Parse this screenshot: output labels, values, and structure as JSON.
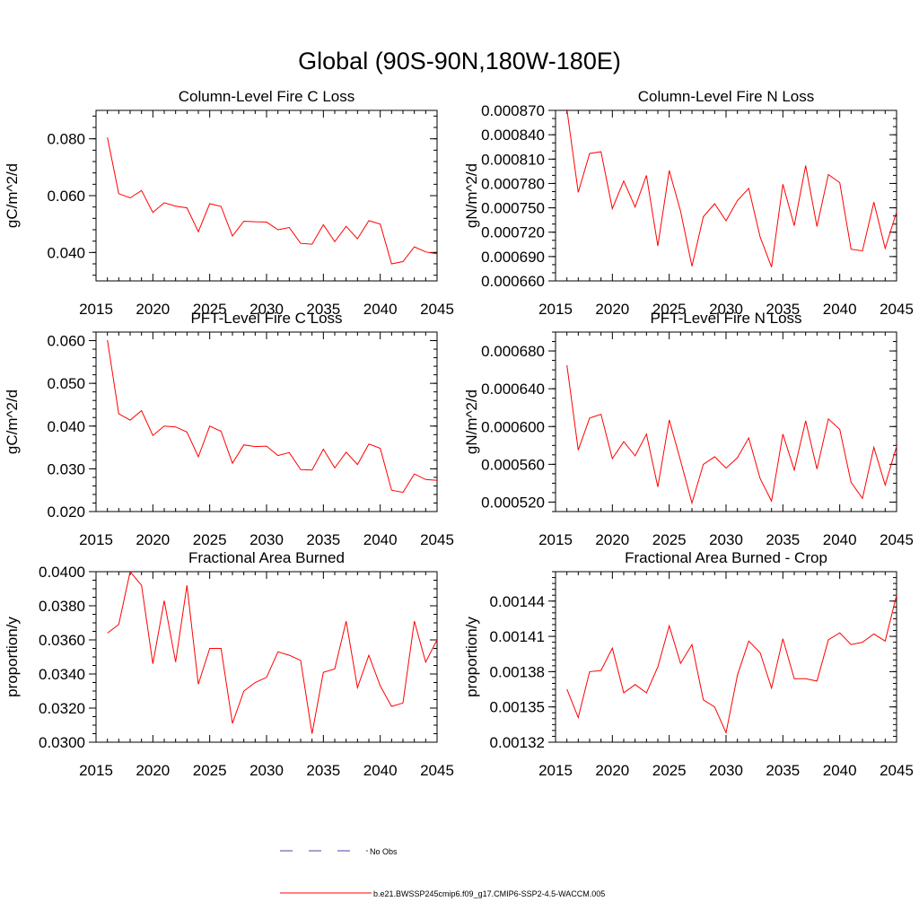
{
  "figure": {
    "title": "Global (90S-90N,180W-180E)",
    "legend": [
      {
        "label": "No Obs",
        "color": "#4444aa",
        "style": "dashed"
      },
      {
        "label": "b.e21.BWSSP245cmip6.f09_g17.CMIP6-SSP2-4.5-WACCM.005",
        "color": "#ff0000",
        "style": "solid"
      }
    ]
  },
  "chart_data": [
    {
      "type": "line",
      "title": "Column-Level Fire C Loss",
      "ylabel": "gC/m^2/d",
      "xlim": [
        2015,
        2045
      ],
      "ylim": [
        0.03,
        0.09
      ],
      "xticks": [
        "2015",
        "2020",
        "2025",
        "2030",
        "2035",
        "2040",
        "2045"
      ],
      "yticks": [
        {
          "v": 0.04,
          "label": "0.040"
        },
        {
          "v": 0.06,
          "label": "0.060"
        },
        {
          "v": 0.08,
          "label": "0.080"
        }
      ],
      "yminor_step": 0.004,
      "x": [
        2016,
        2017,
        2018,
        2019,
        2020,
        2021,
        2022,
        2023,
        2024,
        2025,
        2026,
        2027,
        2028,
        2029,
        2030,
        2031,
        2032,
        2033,
        2034,
        2035,
        2036,
        2037,
        2038,
        2039,
        2040,
        2041,
        2042,
        2043,
        2044,
        2045
      ],
      "series": [
        {
          "color": "#ff0000",
          "values": [
            0.0805,
            0.0607,
            0.0592,
            0.0618,
            0.0541,
            0.0575,
            0.0563,
            0.0557,
            0.0473,
            0.0572,
            0.0562,
            0.0458,
            0.051,
            0.0508,
            0.0507,
            0.048,
            0.0488,
            0.0432,
            0.0429,
            0.0498,
            0.0438,
            0.0492,
            0.0448,
            0.0512,
            0.05,
            0.036,
            0.0368,
            0.042,
            0.0402,
            0.0395
          ]
        }
      ]
    },
    {
      "type": "line",
      "title": "Column-Level Fire N Loss",
      "ylabel": "gN/m^2/d",
      "xlim": [
        2015,
        2045
      ],
      "ylim": [
        0.00066,
        0.00087
      ],
      "xticks": [
        "2015",
        "2020",
        "2025",
        "2030",
        "2035",
        "2040",
        "2045"
      ],
      "yticks": [
        {
          "v": 0.00066,
          "label": "0.000660"
        },
        {
          "v": 0.00069,
          "label": "0.000690"
        },
        {
          "v": 0.00072,
          "label": "0.000720"
        },
        {
          "v": 0.00075,
          "label": "0.000750"
        },
        {
          "v": 0.00078,
          "label": "0.000780"
        },
        {
          "v": 0.00081,
          "label": "0.000810"
        },
        {
          "v": 0.00084,
          "label": "0.000840"
        },
        {
          "v": 0.00087,
          "label": "0.000870"
        }
      ],
      "yminor_step": 1e-05,
      "x": [
        2016,
        2017,
        2018,
        2019,
        2020,
        2021,
        2022,
        2023,
        2024,
        2025,
        2026,
        2027,
        2028,
        2029,
        2030,
        2031,
        2032,
        2033,
        2034,
        2035,
        2036,
        2037,
        2038,
        2039,
        2040,
        2041,
        2042,
        2043,
        2044,
        2045
      ],
      "series": [
        {
          "color": "#ff0000",
          "values": [
            0.000871,
            0.000769,
            0.000817,
            0.000819,
            0.000749,
            0.000783,
            0.000751,
            0.00079,
            0.000703,
            0.000796,
            0.000746,
            0.000678,
            0.000739,
            0.000755,
            0.000734,
            0.000759,
            0.000774,
            0.000714,
            0.000677,
            0.000779,
            0.000728,
            0.000802,
            0.000727,
            0.000791,
            0.000781,
            0.000699,
            0.000697,
            0.000757,
            0.0007,
            0.000745
          ]
        }
      ]
    },
    {
      "type": "line",
      "title": "PFT-Level Fire C Loss",
      "ylabel": "gC/m^2/d",
      "xlim": [
        2015,
        2045
      ],
      "ylim": [
        0.02,
        0.062
      ],
      "xticks": [
        "2015",
        "2020",
        "2025",
        "2030",
        "2035",
        "2040",
        "2045"
      ],
      "yticks": [
        {
          "v": 0.02,
          "label": "0.020"
        },
        {
          "v": 0.03,
          "label": "0.030"
        },
        {
          "v": 0.04,
          "label": "0.040"
        },
        {
          "v": 0.05,
          "label": "0.050"
        },
        {
          "v": 0.06,
          "label": "0.060"
        }
      ],
      "yminor_step": 0.002,
      "x": [
        2016,
        2017,
        2018,
        2019,
        2020,
        2021,
        2022,
        2023,
        2024,
        2025,
        2026,
        2027,
        2028,
        2029,
        2030,
        2031,
        2032,
        2033,
        2034,
        2035,
        2036,
        2037,
        2038,
        2039,
        2040,
        2041,
        2042,
        2043,
        2044,
        2045
      ],
      "series": [
        {
          "color": "#ff0000",
          "values": [
            0.0601,
            0.0429,
            0.0414,
            0.0436,
            0.0378,
            0.04,
            0.0398,
            0.0386,
            0.0328,
            0.04,
            0.0388,
            0.0313,
            0.0356,
            0.0352,
            0.0353,
            0.0331,
            0.0338,
            0.0298,
            0.0297,
            0.0346,
            0.0302,
            0.0339,
            0.031,
            0.0358,
            0.0348,
            0.025,
            0.0245,
            0.0288,
            0.0275,
            0.0273
          ]
        }
      ]
    },
    {
      "type": "line",
      "title": "PFT-Level Fire N Loss",
      "ylabel": "gN/m^2/d",
      "xlim": [
        2015,
        2045
      ],
      "ylim": [
        0.00051,
        0.0007
      ],
      "xticks": [
        "2015",
        "2020",
        "2025",
        "2030",
        "2035",
        "2040",
        "2045"
      ],
      "yticks": [
        {
          "v": 0.00052,
          "label": "0.000520"
        },
        {
          "v": 0.00056,
          "label": "0.000560"
        },
        {
          "v": 0.0006,
          "label": "0.000600"
        },
        {
          "v": 0.00064,
          "label": "0.000640"
        },
        {
          "v": 0.00068,
          "label": "0.000680"
        }
      ],
      "yminor_step": 1e-05,
      "x": [
        2016,
        2017,
        2018,
        2019,
        2020,
        2021,
        2022,
        2023,
        2024,
        2025,
        2026,
        2027,
        2028,
        2029,
        2030,
        2031,
        2032,
        2033,
        2034,
        2035,
        2036,
        2037,
        2038,
        2039,
        2040,
        2041,
        2042,
        2043,
        2044,
        2045
      ],
      "series": [
        {
          "color": "#ff0000",
          "values": [
            0.000665,
            0.000575,
            0.000609,
            0.000613,
            0.000566,
            0.000584,
            0.000569,
            0.000592,
            0.000536,
            0.000607,
            0.000564,
            0.000519,
            0.00056,
            0.000568,
            0.000556,
            0.000567,
            0.000588,
            0.000545,
            0.000521,
            0.000592,
            0.000554,
            0.000606,
            0.000555,
            0.000608,
            0.000597,
            0.000541,
            0.000524,
            0.000578,
            0.000538,
            0.000579
          ]
        }
      ]
    },
    {
      "type": "line",
      "title": "Fractional Area Burned",
      "ylabel": "proportion/y",
      "xlim": [
        2015,
        2045
      ],
      "ylim": [
        0.03,
        0.04
      ],
      "xticks": [
        "2015",
        "2020",
        "2025",
        "2030",
        "2035",
        "2040",
        "2045"
      ],
      "yticks": [
        {
          "v": 0.03,
          "label": "0.0300"
        },
        {
          "v": 0.032,
          "label": "0.0320"
        },
        {
          "v": 0.034,
          "label": "0.0340"
        },
        {
          "v": 0.036,
          "label": "0.0360"
        },
        {
          "v": 0.038,
          "label": "0.0380"
        },
        {
          "v": 0.04,
          "label": "0.0400"
        }
      ],
      "yminor_step": 0.0005,
      "x": [
        2016,
        2017,
        2018,
        2019,
        2020,
        2021,
        2022,
        2023,
        2024,
        2025,
        2026,
        2027,
        2028,
        2029,
        2030,
        2031,
        2032,
        2033,
        2034,
        2035,
        2036,
        2037,
        2038,
        2039,
        2040,
        2041,
        2042,
        2043,
        2044,
        2045
      ],
      "series": [
        {
          "color": "#ff0000",
          "values": [
            0.0364,
            0.0369,
            0.04,
            0.0392,
            0.0346,
            0.0383,
            0.0347,
            0.0392,
            0.0334,
            0.0355,
            0.0355,
            0.0311,
            0.033,
            0.0335,
            0.0338,
            0.0353,
            0.0351,
            0.0348,
            0.0305,
            0.0341,
            0.0343,
            0.0371,
            0.0332,
            0.0351,
            0.0333,
            0.0321,
            0.0323,
            0.0371,
            0.0347,
            0.036
          ]
        }
      ]
    },
    {
      "type": "line",
      "title": "Fractional Area Burned - Crop",
      "ylabel": "proportion/y",
      "xlim": [
        2015,
        2045
      ],
      "ylim": [
        0.00132,
        0.001465
      ],
      "xticks": [
        "2015",
        "2020",
        "2025",
        "2030",
        "2035",
        "2040",
        "2045"
      ],
      "yticks": [
        {
          "v": 0.00132,
          "label": "0.00132"
        },
        {
          "v": 0.00135,
          "label": "0.00135"
        },
        {
          "v": 0.00138,
          "label": "0.00138"
        },
        {
          "v": 0.00141,
          "label": "0.00141"
        },
        {
          "v": 0.00144,
          "label": "0.00144"
        }
      ],
      "yminor_step": 5e-06,
      "x": [
        2016,
        2017,
        2018,
        2019,
        2020,
        2021,
        2022,
        2023,
        2024,
        2025,
        2026,
        2027,
        2028,
        2029,
        2030,
        2031,
        2032,
        2033,
        2034,
        2035,
        2036,
        2037,
        2038,
        2039,
        2040,
        2041,
        2042,
        2043,
        2044,
        2045
      ],
      "series": [
        {
          "color": "#ff0000",
          "values": [
            0.001365,
            0.001341,
            0.00138,
            0.001381,
            0.0014,
            0.001362,
            0.001369,
            0.001362,
            0.001384,
            0.001419,
            0.001387,
            0.001403,
            0.001356,
            0.00135,
            0.001328,
            0.001377,
            0.001406,
            0.001396,
            0.001366,
            0.001408,
            0.001374,
            0.001374,
            0.001372,
            0.001407,
            0.001413,
            0.001403,
            0.001405,
            0.001412,
            0.001406,
            0.001445
          ]
        }
      ]
    }
  ]
}
